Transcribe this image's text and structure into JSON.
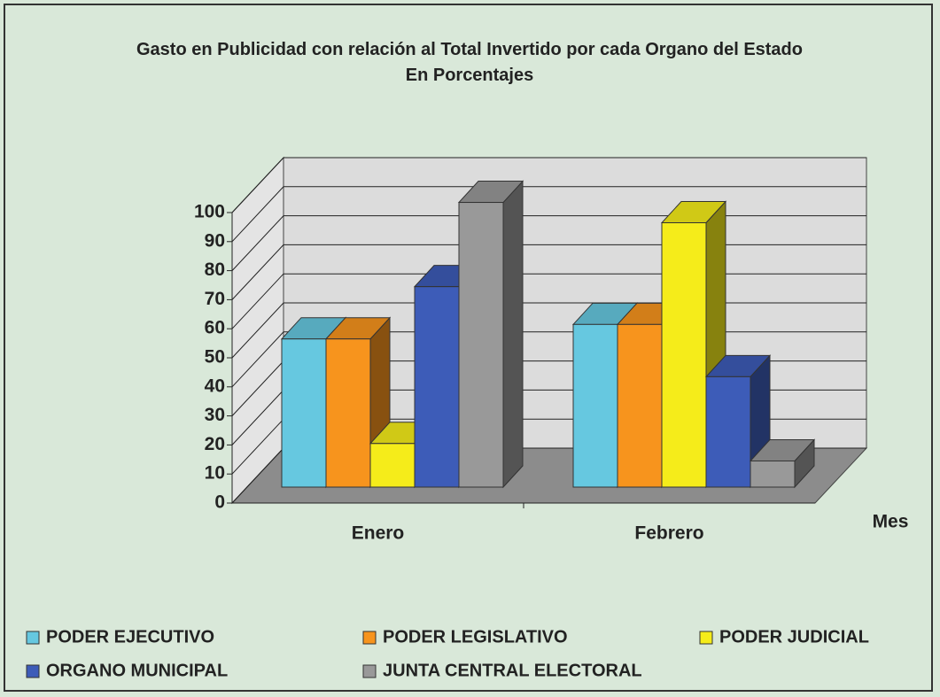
{
  "chart_data": {
    "type": "bar3d",
    "title": "Gasto en Publicidad con relación al Total Invertido por cada Organo del Estado",
    "subtitle": "En Porcentajes",
    "x_label": "Mes",
    "categories": [
      "Enero",
      "Febrero"
    ],
    "series": [
      {
        "name": "PODER EJECUTIVO",
        "color": "#66c8e0",
        "values": [
          51,
          56
        ]
      },
      {
        "name": "PODER LEGISLATIVO",
        "color": "#f7941d",
        "values": [
          51,
          56
        ]
      },
      {
        "name": "PODER JUDICIAL",
        "color": "#f5ec1a",
        "values": [
          15,
          91
        ]
      },
      {
        "name": "ORGANO MUNICIPAL",
        "color": "#3d5cb8",
        "values": [
          69,
          38
        ]
      },
      {
        "name": "JUNTA CENTRAL ELECTORAL",
        "color": "#999999",
        "values": [
          98,
          9
        ]
      }
    ],
    "ylim": [
      0,
      100
    ],
    "yticks": [
      0,
      10,
      20,
      30,
      40,
      50,
      60,
      70,
      80,
      90,
      100
    ],
    "grid": true
  }
}
